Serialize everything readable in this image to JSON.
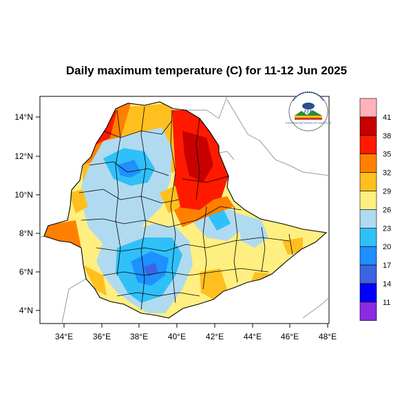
{
  "title": "Daily maximum temperature (C) for 11-12 Jun 2025",
  "map": {
    "lon_ticks": [
      "34°E",
      "36°E",
      "38°E",
      "40°E",
      "42°E",
      "44°E",
      "46°E",
      "48°E"
    ],
    "lat_ticks": [
      "14°N",
      "12°N",
      "10°N",
      "8°N",
      "6°N",
      "4°N"
    ],
    "lon_range": [
      33,
      48.2
    ],
    "lat_range": [
      3.2,
      14.8
    ]
  },
  "colorbar": {
    "labels": [
      "41",
      "38",
      "35",
      "32",
      "29",
      "26",
      "23",
      "20",
      "17",
      "14",
      "11"
    ],
    "colors": [
      "#ffb3b8",
      "#c80000",
      "#ff1a00",
      "#ff8000",
      "#ffbf1f",
      "#ffef80",
      "#b0daf0",
      "#30c0f8",
      "#1e90ff",
      "#3c64e0",
      "#0000ff",
      "#8a2be2"
    ]
  },
  "logo": {
    "icon": "ethiopian-meteorology-institute-logo"
  }
}
